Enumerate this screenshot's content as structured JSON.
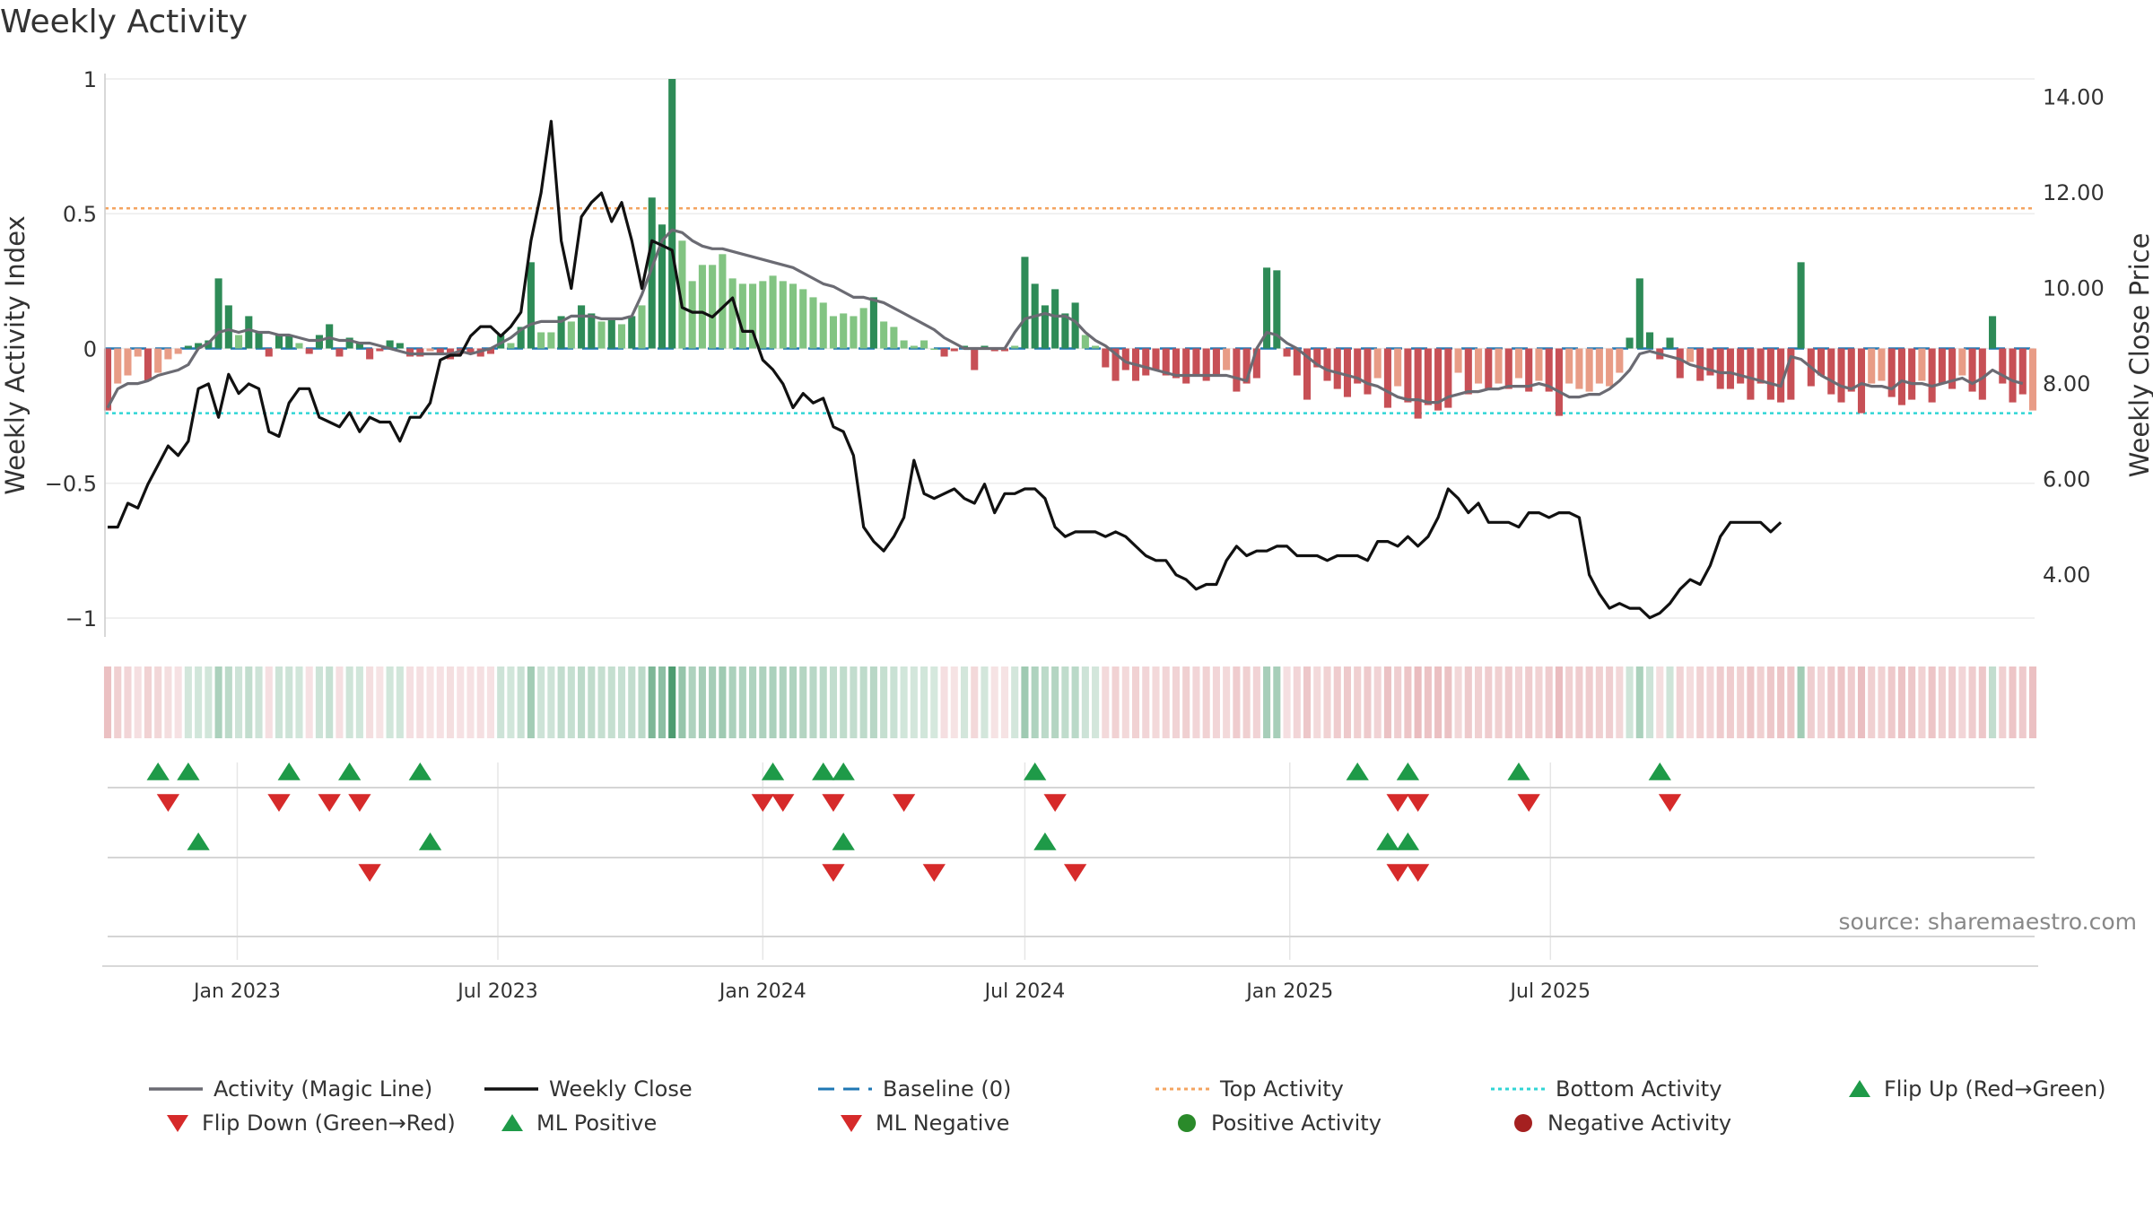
{
  "title": "Weekly Activity",
  "source": "source: sharemaestro.com",
  "colors": {
    "pos_dark": "#2e8b57",
    "pos_light": "#82c482",
    "neg_dark": "#c75056",
    "neg_light": "#e89c86",
    "magic": "#6b6b73",
    "close": "#111111",
    "baseline": "#1f77b4",
    "top": "#f4a460",
    "bottom": "#30d5d5",
    "up": "#1e9a48",
    "down": "#d62a2a"
  },
  "chart_data": {
    "type": "bar",
    "title": "Weekly Activity",
    "ylabel": "Weekly Activity Index",
    "y2label": "Weekly Close Price",
    "ylim": [
      -1.07,
      1.02
    ],
    "y2lim": [
      2.7,
      14.5
    ],
    "yticks": [
      1,
      0.5,
      0,
      -0.5,
      -1
    ],
    "ytick_labels": [
      "1",
      "0.5",
      "0",
      "−0.5",
      "−1"
    ],
    "y2ticks": [
      14,
      12,
      10,
      8,
      6,
      4
    ],
    "y2tick_labels": [
      "14.00",
      "12.00",
      "10.00",
      "8.00",
      "6.00",
      "4.00"
    ],
    "x_start": "2022-10-03",
    "x_step_days": 7,
    "xticks": [
      "2023-01-01",
      "2023-07-01",
      "2024-01-01",
      "2024-07-01",
      "2025-01-01",
      "2025-07-01"
    ],
    "xtick_labels": [
      "Jan 2023",
      "Jul 2023",
      "Jan 2024",
      "Jul 2024",
      "Jan 2025",
      "Jul 2025"
    ],
    "grid": true,
    "top_activity": 0.52,
    "bottom_activity": -0.24,
    "baseline": 0,
    "activity": [
      -0.23,
      -0.13,
      -0.1,
      -0.03,
      -0.12,
      -0.09,
      -0.04,
      -0.02,
      0.01,
      0.02,
      0.03,
      0.26,
      0.16,
      0.05,
      0.12,
      0.06,
      -0.03,
      0.05,
      0.05,
      0.02,
      -0.02,
      0.05,
      0.09,
      -0.03,
      0.04,
      0.02,
      -0.04,
      -0.01,
      0.03,
      0.02,
      -0.03,
      -0.03,
      -0.01,
      -0.02,
      -0.04,
      -0.02,
      -0.02,
      -0.03,
      -0.02,
      0.05,
      0.02,
      0.08,
      0.32,
      0.06,
      0.06,
      0.12,
      0.1,
      0.16,
      0.13,
      0.1,
      0.11,
      0.09,
      0.12,
      0.16,
      0.56,
      0.46,
      1.0,
      0.4,
      0.25,
      0.31,
      0.31,
      0.35,
      0.26,
      0.24,
      0.24,
      0.25,
      0.27,
      0.25,
      0.24,
      0.22,
      0.19,
      0.17,
      0.12,
      0.13,
      0.12,
      0.15,
      0.19,
      0.1,
      0.08,
      0.03,
      0.01,
      0.03,
      0.0,
      -0.03,
      -0.01,
      0.01,
      -0.08,
      0.01,
      -0.01,
      -0.01,
      0.01,
      0.34,
      0.24,
      0.16,
      0.22,
      0.13,
      0.17,
      0.05,
      0.01,
      -0.07,
      -0.12,
      -0.08,
      -0.12,
      -0.1,
      -0.08,
      -0.1,
      -0.11,
      -0.13,
      -0.1,
      -0.12,
      -0.1,
      -0.08,
      -0.16,
      -0.13,
      -0.11,
      0.3,
      0.29,
      -0.03,
      -0.1,
      -0.19,
      -0.07,
      -0.12,
      -0.15,
      -0.18,
      -0.13,
      -0.17,
      -0.11,
      -0.22,
      -0.14,
      -0.2,
      -0.26,
      -0.21,
      -0.23,
      -0.22,
      -0.09,
      -0.17,
      -0.13,
      -0.15,
      -0.13,
      -0.15,
      -0.11,
      -0.16,
      -0.12,
      -0.16,
      -0.25,
      -0.13,
      -0.15,
      -0.16,
      -0.13,
      -0.14,
      -0.09,
      0.04,
      0.26,
      0.06,
      -0.04,
      0.04,
      -0.11,
      -0.05,
      -0.12,
      -0.1,
      -0.15,
      -0.15,
      -0.13,
      -0.19,
      -0.13,
      -0.19,
      -0.2,
      -0.19,
      0.32,
      -0.14,
      -0.1,
      -0.17,
      -0.2,
      -0.16,
      -0.24,
      -0.13,
      -0.12,
      -0.18,
      -0.21,
      -0.19,
      -0.12,
      -0.2,
      -0.13,
      -0.15,
      -0.1,
      -0.16,
      -0.19,
      0.12,
      -0.13,
      -0.2,
      -0.17,
      -0.23
    ],
    "magic_line": [
      -0.22,
      -0.15,
      -0.13,
      -0.13,
      -0.12,
      -0.1,
      -0.09,
      -0.08,
      -0.06,
      0.0,
      0.02,
      0.06,
      0.07,
      0.06,
      0.07,
      0.06,
      0.06,
      0.05,
      0.05,
      0.04,
      0.03,
      0.03,
      0.04,
      0.03,
      0.03,
      0.02,
      0.02,
      0.01,
      0.0,
      -0.01,
      -0.02,
      -0.02,
      -0.02,
      -0.02,
      -0.02,
      -0.01,
      -0.02,
      -0.01,
      0.0,
      0.02,
      0.04,
      0.07,
      0.09,
      0.1,
      0.1,
      0.1,
      0.12,
      0.12,
      0.12,
      0.11,
      0.11,
      0.11,
      0.12,
      0.2,
      0.3,
      0.4,
      0.44,
      0.43,
      0.4,
      0.38,
      0.37,
      0.37,
      0.36,
      0.35,
      0.34,
      0.33,
      0.32,
      0.31,
      0.3,
      0.28,
      0.26,
      0.24,
      0.23,
      0.21,
      0.19,
      0.19,
      0.18,
      0.17,
      0.15,
      0.13,
      0.11,
      0.09,
      0.07,
      0.04,
      0.02,
      0.0,
      0.0,
      0.0,
      0.0,
      0.0,
      0.06,
      0.11,
      0.12,
      0.13,
      0.12,
      0.12,
      0.1,
      0.06,
      0.03,
      0.01,
      -0.02,
      -0.05,
      -0.06,
      -0.07,
      -0.08,
      -0.09,
      -0.1,
      -0.1,
      -0.1,
      -0.1,
      -0.1,
      -0.1,
      -0.11,
      -0.12,
      0.0,
      0.06,
      0.05,
      0.02,
      0.0,
      -0.03,
      -0.06,
      -0.08,
      -0.09,
      -0.1,
      -0.11,
      -0.13,
      -0.14,
      -0.16,
      -0.18,
      -0.19,
      -0.19,
      -0.2,
      -0.2,
      -0.18,
      -0.17,
      -0.16,
      -0.16,
      -0.15,
      -0.15,
      -0.14,
      -0.14,
      -0.14,
      -0.13,
      -0.14,
      -0.16,
      -0.18,
      -0.18,
      -0.17,
      -0.17,
      -0.15,
      -0.12,
      -0.08,
      -0.02,
      -0.01,
      -0.02,
      -0.03,
      -0.04,
      -0.06,
      -0.07,
      -0.08,
      -0.09,
      -0.09,
      -0.1,
      -0.11,
      -0.12,
      -0.13,
      -0.14,
      -0.03,
      -0.04,
      -0.07,
      -0.1,
      -0.12,
      -0.14,
      -0.15,
      -0.13,
      -0.14,
      -0.14,
      -0.15,
      -0.12,
      -0.13,
      -0.13,
      -0.14,
      -0.13,
      -0.12,
      -0.11,
      -0.13,
      -0.11,
      -0.08,
      -0.1,
      -0.12,
      -0.13
    ],
    "weekly_close": [
      5.0,
      5.0,
      5.5,
      5.4,
      5.9,
      6.3,
      6.7,
      6.5,
      6.8,
      7.9,
      8.0,
      7.3,
      8.2,
      7.8,
      8.0,
      7.9,
      7.0,
      6.9,
      7.6,
      7.9,
      7.9,
      7.3,
      7.2,
      7.1,
      7.4,
      7.0,
      7.3,
      7.2,
      7.2,
      6.8,
      7.3,
      7.3,
      7.6,
      8.5,
      8.6,
      8.6,
      9.0,
      9.2,
      9.2,
      9.0,
      9.2,
      9.5,
      11.0,
      12.0,
      13.5,
      11.0,
      10.0,
      11.5,
      11.8,
      12.0,
      11.4,
      11.8,
      11.0,
      10.0,
      11.0,
      10.9,
      10.8,
      9.6,
      9.5,
      9.5,
      9.4,
      9.6,
      9.8,
      9.1,
      9.1,
      8.5,
      8.3,
      8.0,
      7.5,
      7.8,
      7.6,
      7.7,
      7.1,
      7.0,
      6.5,
      5.0,
      4.7,
      4.5,
      4.8,
      5.2,
      6.4,
      5.7,
      5.6,
      5.7,
      5.8,
      5.6,
      5.5,
      5.9,
      5.3,
      5.7,
      5.7,
      5.8,
      5.8,
      5.6,
      5.0,
      4.8,
      4.9,
      4.9,
      4.9,
      4.8,
      4.9,
      4.8,
      4.6,
      4.4,
      4.3,
      4.3,
      4.0,
      3.9,
      3.7,
      3.8,
      3.8,
      4.3,
      4.6,
      4.4,
      4.5,
      4.5,
      4.6,
      4.6,
      4.4,
      4.4,
      4.4,
      4.3,
      4.4,
      4.4,
      4.4,
      4.3,
      4.7,
      4.7,
      4.6,
      4.8,
      4.6,
      4.8,
      5.2,
      5.8,
      5.6,
      5.3,
      5.5,
      5.1,
      5.1,
      5.1,
      5.0,
      5.3,
      5.3,
      5.2,
      5.3,
      5.3,
      5.2,
      4.0,
      3.6,
      3.3,
      3.4,
      3.3,
      3.3,
      3.1,
      3.2,
      3.4,
      3.7,
      3.9,
      3.8,
      4.2,
      4.8,
      5.1,
      5.1,
      5.1,
      5.1,
      4.9,
      5.1
    ],
    "flip_up_idx": [
      5,
      8,
      18,
      24,
      31,
      66,
      71,
      73,
      92,
      124,
      129,
      140,
      154
    ],
    "flip_down_idx": [
      6,
      17,
      22,
      25,
      65,
      67,
      72,
      79,
      94,
      128,
      130,
      141,
      155
    ],
    "ml_positive_idx": [
      9,
      32,
      73,
      93,
      127,
      129
    ],
    "ml_negative_idx": [
      26,
      72,
      82,
      96,
      128,
      130
    ]
  },
  "legend": [
    {
      "label": "Activity (Magic Line)",
      "icon": "magic-line-icon"
    },
    {
      "label": "Weekly Close",
      "icon": "close-line-icon"
    },
    {
      "label": "Baseline (0)",
      "icon": "baseline-dash-icon"
    },
    {
      "label": "Top Activity",
      "icon": "top-dotted-icon"
    },
    {
      "label": "Bottom Activity",
      "icon": "bottom-dotted-icon"
    },
    {
      "label": "Flip Up (Red→Green)",
      "icon": "triangle-up-icon"
    },
    {
      "label": "Flip Down (Green→Red)",
      "icon": "triangle-down-icon"
    },
    {
      "label": "ML Positive",
      "icon": "triangle-up-icon"
    },
    {
      "label": "ML Negative",
      "icon": "triangle-down-icon"
    },
    {
      "label": "Positive Activity",
      "icon": "green-dot-icon"
    },
    {
      "label": "Negative Activity",
      "icon": "red-dot-icon"
    }
  ]
}
